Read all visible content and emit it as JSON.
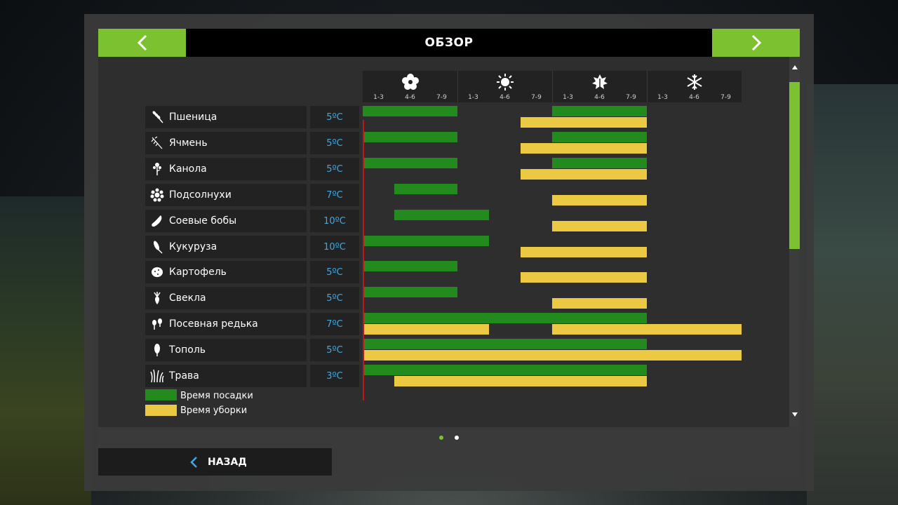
{
  "header": {
    "title": "ОБЗОР",
    "prev_icon": "chevron-left-icon",
    "next_icon": "chevron-right-icon"
  },
  "seasons": [
    {
      "icon": "flower-icon",
      "months": [
        "1-3",
        "4-6",
        "7-9"
      ]
    },
    {
      "icon": "sun-icon",
      "months": [
        "1-3",
        "4-6",
        "7-9"
      ]
    },
    {
      "icon": "leaf-icon",
      "months": [
        "1-3",
        "4-6",
        "7-9"
      ]
    },
    {
      "icon": "snowflake-icon",
      "months": [
        "1-3",
        "4-6",
        "7-9"
      ]
    }
  ],
  "crops": [
    {
      "name": "Пшеница",
      "temp": "5ºC",
      "icon": "wheat-icon"
    },
    {
      "name": "Ячмень",
      "temp": "5ºC",
      "icon": "barley-icon"
    },
    {
      "name": "Канола",
      "temp": "5ºC",
      "icon": "canola-icon"
    },
    {
      "name": "Подсолнухи",
      "temp": "7ºC",
      "icon": "sunflower-icon"
    },
    {
      "name": "Соевые бобы",
      "temp": "10ºC",
      "icon": "soybean-icon"
    },
    {
      "name": "Кукуруза",
      "temp": "10ºC",
      "icon": "corn-icon"
    },
    {
      "name": "Картофель",
      "temp": "5ºC",
      "icon": "potato-icon"
    },
    {
      "name": "Свекла",
      "temp": "5ºC",
      "icon": "beet-icon"
    },
    {
      "name": "Посевная редька",
      "temp": "7ºC",
      "icon": "radish-icon"
    },
    {
      "name": "Тополь",
      "temp": "5ºC",
      "icon": "poplar-icon"
    },
    {
      "name": "Трава",
      "temp": "3ºC",
      "icon": "grass-icon"
    }
  ],
  "calendar": {
    "period_count": 12,
    "rows": [
      {
        "plant": [
          [
            0,
            3
          ],
          [
            6,
            9
          ]
        ],
        "harvest": [
          [
            5,
            9
          ]
        ]
      },
      {
        "plant": [
          [
            0,
            3
          ],
          [
            6,
            9
          ]
        ],
        "harvest": [
          [
            5,
            9
          ]
        ]
      },
      {
        "plant": [
          [
            0,
            3
          ],
          [
            6,
            9
          ]
        ],
        "harvest": [
          [
            5,
            9
          ]
        ]
      },
      {
        "plant": [
          [
            1,
            3
          ]
        ],
        "harvest": [
          [
            6,
            9
          ]
        ]
      },
      {
        "plant": [
          [
            1,
            4
          ]
        ],
        "harvest": [
          [
            6,
            9
          ]
        ]
      },
      {
        "plant": [
          [
            0,
            4
          ]
        ],
        "harvest": [
          [
            5,
            9
          ]
        ]
      },
      {
        "plant": [
          [
            0,
            3
          ]
        ],
        "harvest": [
          [
            5,
            9
          ]
        ]
      },
      {
        "plant": [
          [
            0,
            3
          ]
        ],
        "harvest": [
          [
            6,
            9
          ]
        ]
      },
      {
        "plant": [
          [
            0,
            9
          ]
        ],
        "harvest": [
          [
            0,
            4
          ],
          [
            6,
            12
          ]
        ]
      },
      {
        "plant": [
          [
            0,
            9
          ]
        ],
        "harvest": [
          [
            0,
            12
          ]
        ]
      },
      {
        "plant": [
          [
            0,
            9
          ]
        ],
        "harvest": [
          [
            1,
            9
          ]
        ]
      }
    ]
  },
  "legend": {
    "planting": "Время посадки",
    "harvest": "Время уборки"
  },
  "colors": {
    "accent": "#7cc230",
    "planting": "#238a1d",
    "harvest": "#ebc942",
    "temp": "#3fa9e6",
    "today_marker": "#c01818"
  },
  "pagination": {
    "pages": 2,
    "current": 1
  },
  "footer": {
    "back_label": "НАЗАД"
  }
}
